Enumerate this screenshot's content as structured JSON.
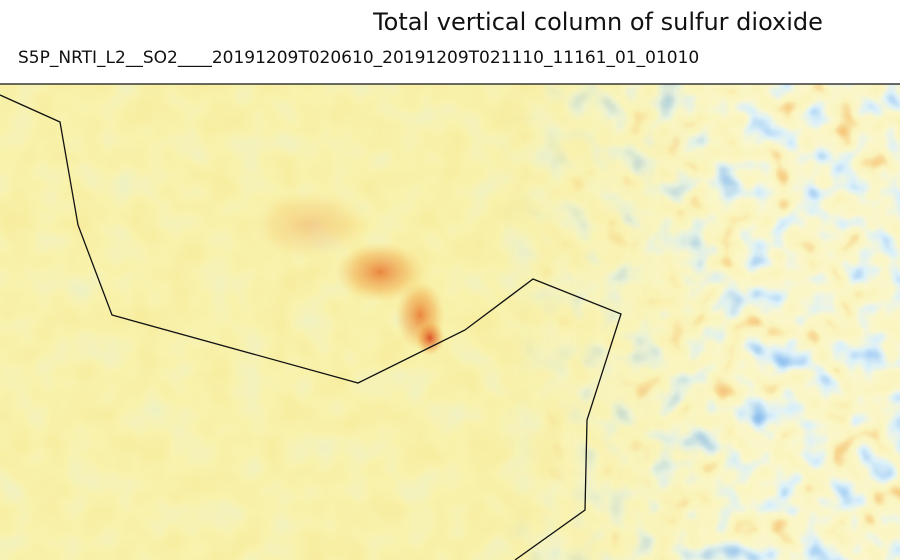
{
  "title": "Total vertical column of sulfur dioxide",
  "subtitle": "S5P_NRTI_L2__SO2____20191209T020610_20191209T021110_11161_01_01010"
}
